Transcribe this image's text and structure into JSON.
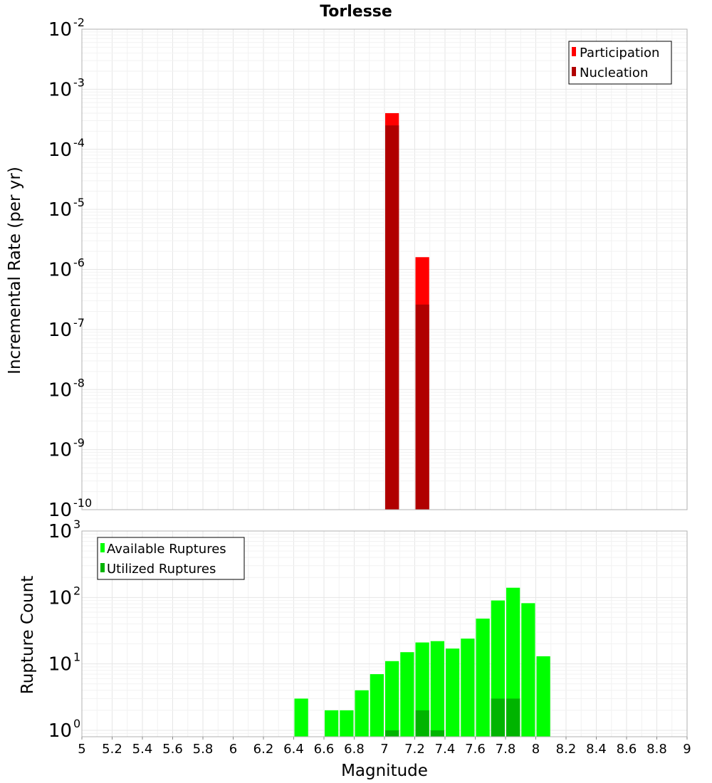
{
  "title": "Torlesse",
  "colors": {
    "participation": "#ff0000",
    "nucleation": "#b00000",
    "available": "#00ff00",
    "utilized": "#00b400"
  },
  "chart_data": [
    {
      "type": "bar",
      "panel": "top",
      "ylabel": "Incremental Rate (per yr)",
      "yscale": "log",
      "ylim": [
        1e-10,
        0.01
      ],
      "y_ticks": [
        {
          "base": "10",
          "exp": "-10",
          "value": 1e-10
        },
        {
          "base": "10",
          "exp": "-9",
          "value": 1e-09
        },
        {
          "base": "10",
          "exp": "-8",
          "value": 1e-08
        },
        {
          "base": "10",
          "exp": "-7",
          "value": 1e-07
        },
        {
          "base": "10",
          "exp": "-6",
          "value": 1e-06
        },
        {
          "base": "10",
          "exp": "-5",
          "value": 1e-05
        },
        {
          "base": "10",
          "exp": "-4",
          "value": 0.0001
        },
        {
          "base": "10",
          "exp": "-3",
          "value": 0.001
        },
        {
          "base": "10",
          "exp": "-2",
          "value": 0.01
        }
      ],
      "bar_width": 0.1,
      "legend": {
        "position": "top-right"
      },
      "series": [
        {
          "name": "Participation",
          "x": [
            7.05,
            7.25
          ],
          "values": [
            0.0004,
            1.6e-06
          ]
        },
        {
          "name": "Nucleation",
          "x": [
            7.05,
            7.25
          ],
          "values": [
            0.00025,
            2.6e-07
          ]
        }
      ]
    },
    {
      "type": "bar",
      "panel": "bottom",
      "xlabel": "Magnitude",
      "ylabel": "Rupture Count",
      "yscale": "log",
      "ylim": [
        0.8,
        1000
      ],
      "xlim": [
        5,
        9
      ],
      "y_ticks": [
        {
          "base": "10",
          "exp": "0",
          "value": 1
        },
        {
          "base": "10",
          "exp": "1",
          "value": 10
        },
        {
          "base": "10",
          "exp": "2",
          "value": 100
        },
        {
          "base": "10",
          "exp": "3",
          "value": 1000
        }
      ],
      "x_ticks": [
        "5",
        "5.2",
        "5.4",
        "5.6",
        "5.8",
        "6",
        "6.2",
        "6.4",
        "6.6",
        "6.8",
        "7",
        "7.2",
        "7.4",
        "7.6",
        "7.8",
        "8",
        "8.2",
        "8.4",
        "8.6",
        "8.8",
        "9"
      ],
      "bar_width": 0.1,
      "legend": {
        "position": "top-left"
      },
      "series": [
        {
          "name": "Available Ruptures",
          "x": [
            6.45,
            6.65,
            6.75,
            6.85,
            6.95,
            7.05,
            7.15,
            7.25,
            7.35,
            7.45,
            7.55,
            7.65,
            7.75,
            7.85,
            7.95,
            8.05
          ],
          "values": [
            3,
            2,
            2,
            4,
            7,
            11,
            15,
            21,
            22,
            17,
            24,
            48,
            90,
            140,
            82,
            13
          ]
        },
        {
          "name": "Utilized Ruptures",
          "x": [
            7.05,
            7.25,
            7.35,
            7.75,
            7.85
          ],
          "values": [
            1,
            2,
            1,
            3,
            3
          ]
        }
      ]
    }
  ]
}
